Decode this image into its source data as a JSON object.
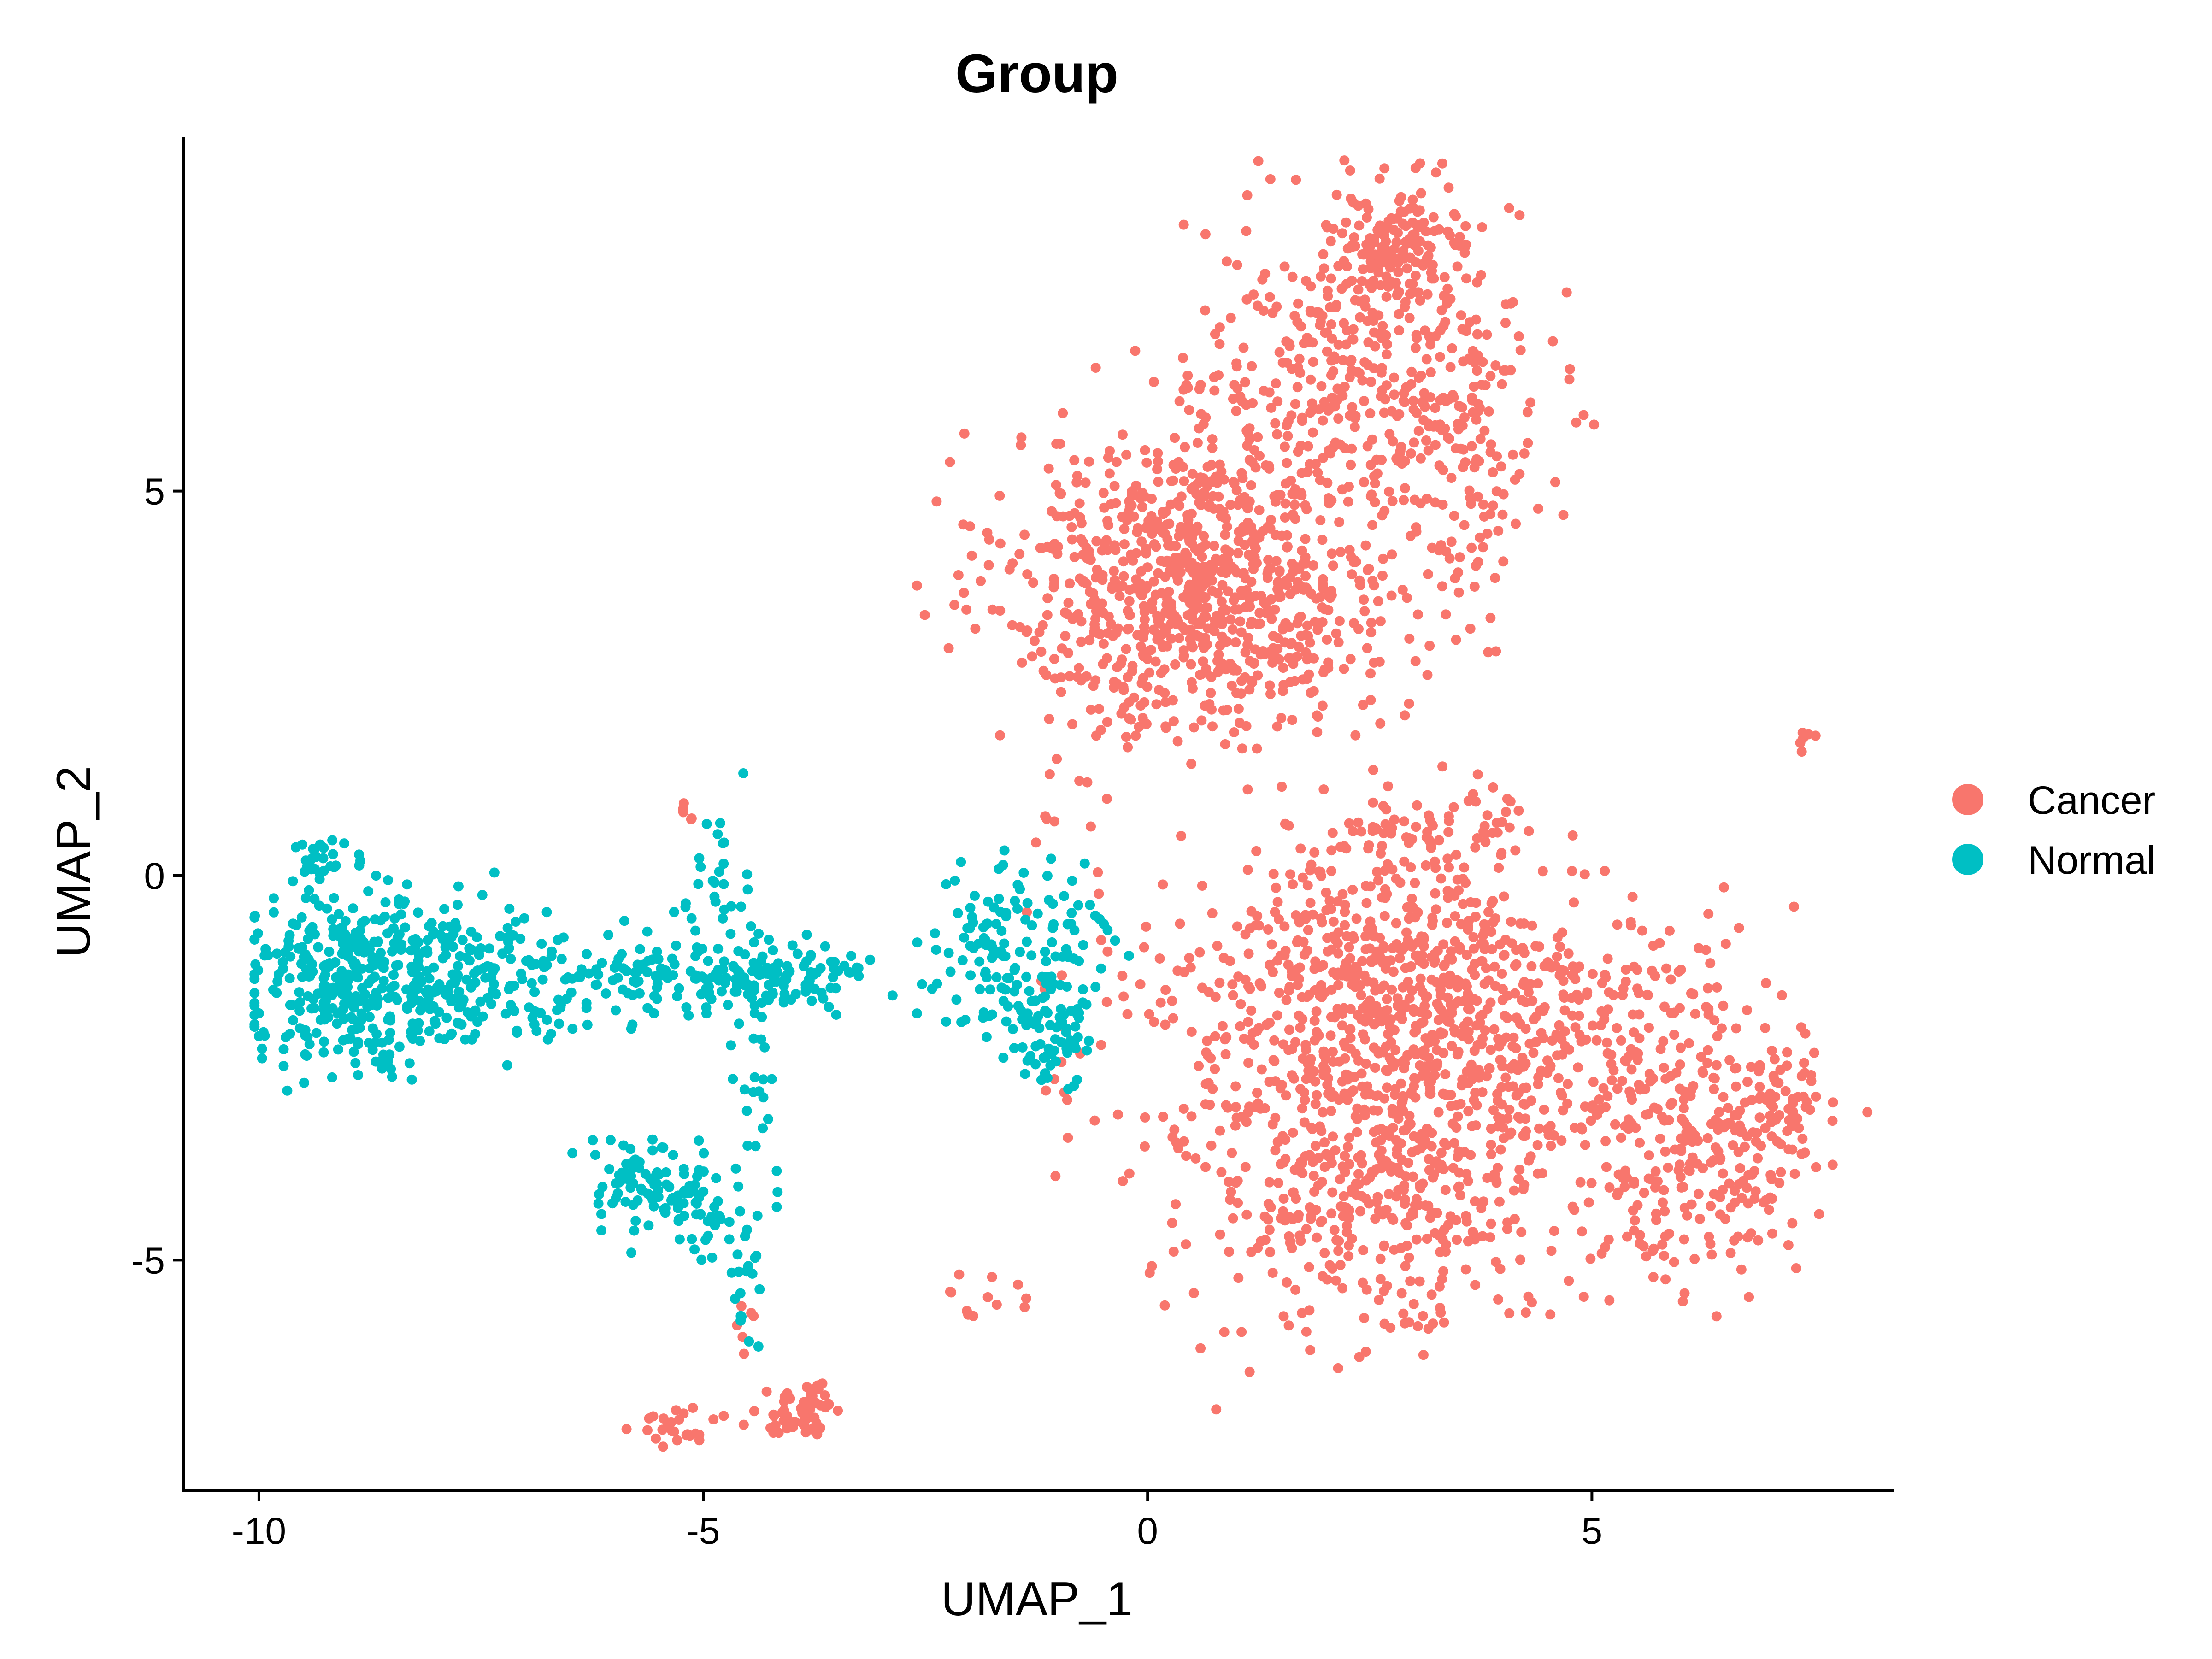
{
  "chart_data": {
    "type": "scatter",
    "title": "Group",
    "xlabel": "UMAP_1",
    "ylabel": "UMAP_2",
    "xlim": [
      -10.85,
      8.4
    ],
    "ylim": [
      -8.0,
      9.6
    ],
    "xticks": [
      -10,
      -5,
      0,
      5
    ],
    "xtick_labels": [
      "-10",
      "-5",
      "0",
      "5"
    ],
    "yticks": [
      -5,
      0,
      5
    ],
    "ytick_labels": [
      "-5",
      "0",
      "5"
    ],
    "grid": false,
    "legend": {
      "position": "right",
      "title": ""
    },
    "series": [
      {
        "name": "Cancer",
        "color": "#F8766D",
        "clusters": [
          {
            "cx": 0.6,
            "cy": 3.8,
            "sx": 1.1,
            "sy": 1.0,
            "n": 900
          },
          {
            "cx": 2.4,
            "cy": 6.6,
            "sx": 0.9,
            "sy": 1.1,
            "n": 380
          },
          {
            "cx": 2.8,
            "cy": 8.1,
            "sx": 0.4,
            "sy": 0.35,
            "n": 130
          },
          {
            "cx": 3.6,
            "cy": 5.5,
            "sx": 0.4,
            "sy": 1.0,
            "n": 110
          },
          {
            "cx": 2.7,
            "cy": -1.7,
            "sx": 1.2,
            "sy": 1.1,
            "n": 800
          },
          {
            "cx": 2.6,
            "cy": -4.0,
            "sx": 1.1,
            "sy": 1.0,
            "n": 450
          },
          {
            "cx": 5.2,
            "cy": -2.0,
            "sx": 0.9,
            "sy": 0.8,
            "n": 180
          },
          {
            "cx": 6.2,
            "cy": -3.8,
            "sx": 0.6,
            "sy": 0.8,
            "n": 200
          },
          {
            "cx": 7.0,
            "cy": -2.9,
            "sx": 0.3,
            "sy": 0.4,
            "n": 60
          },
          {
            "cx": 3.5,
            "cy": 0.6,
            "sx": 0.6,
            "sy": 0.25,
            "n": 60
          },
          {
            "cx": 7.4,
            "cy": 1.8,
            "sx": 0.08,
            "sy": 0.1,
            "n": 6
          },
          {
            "cx": -3.9,
            "cy": -7.0,
            "sx": 0.22,
            "sy": 0.15,
            "n": 60
          },
          {
            "cx": -5.3,
            "cy": -7.2,
            "sx": 0.3,
            "sy": 0.15,
            "n": 25
          },
          {
            "cx": -1.8,
            "cy": -5.4,
            "sx": 0.35,
            "sy": 0.2,
            "n": 12
          },
          {
            "cx": -0.9,
            "cy": -2.0,
            "sx": 0.2,
            "sy": 0.6,
            "n": 10
          },
          {
            "cx": -1.2,
            "cy": 0.6,
            "sx": 0.35,
            "sy": 0.5,
            "n": 8
          },
          {
            "cx": -5.2,
            "cy": 0.9,
            "sx": 0.05,
            "sy": 0.1,
            "n": 5
          },
          {
            "cx": -4.5,
            "cy": -5.9,
            "sx": 0.1,
            "sy": 0.2,
            "n": 6
          },
          {
            "cx": 0.6,
            "cy": -1.5,
            "sx": 0.4,
            "sy": 0.8,
            "n": 8
          }
        ]
      },
      {
        "name": "Normal",
        "color": "#00BFC4",
        "clusters": [
          {
            "cx": -9.0,
            "cy": -1.3,
            "sx": 0.55,
            "sy": 0.55,
            "n": 330
          },
          {
            "cx": -9.3,
            "cy": 0.2,
            "sx": 0.2,
            "sy": 0.15,
            "n": 25
          },
          {
            "cx": -7.6,
            "cy": -1.3,
            "sx": 0.6,
            "sy": 0.45,
            "n": 170
          },
          {
            "cx": -6.0,
            "cy": -1.3,
            "sx": 0.6,
            "sy": 0.3,
            "n": 90
          },
          {
            "cx": -4.4,
            "cy": -1.3,
            "sx": 0.45,
            "sy": 0.25,
            "n": 100
          },
          {
            "cx": -3.6,
            "cy": -1.3,
            "sx": 0.25,
            "sy": 0.15,
            "n": 25
          },
          {
            "cx": -4.85,
            "cy": 0.0,
            "sx": 0.2,
            "sy": 0.5,
            "n": 25
          },
          {
            "cx": -1.6,
            "cy": -1.1,
            "sx": 0.45,
            "sy": 0.55,
            "n": 130
          },
          {
            "cx": -1.1,
            "cy": -2.0,
            "sx": 0.25,
            "sy": 0.4,
            "n": 60
          },
          {
            "cx": -4.4,
            "cy": -3.0,
            "sx": 0.15,
            "sy": 0.9,
            "n": 30
          },
          {
            "cx": -5.8,
            "cy": -3.9,
            "sx": 0.25,
            "sy": 0.3,
            "n": 60
          },
          {
            "cx": -5.0,
            "cy": -4.3,
            "sx": 0.35,
            "sy": 0.35,
            "n": 60
          },
          {
            "cx": -4.55,
            "cy": -5.4,
            "sx": 0.08,
            "sy": 0.4,
            "n": 12
          },
          {
            "cx": -0.7,
            "cy": -0.6,
            "sx": 0.2,
            "sy": 0.4,
            "n": 15
          }
        ]
      }
    ]
  }
}
